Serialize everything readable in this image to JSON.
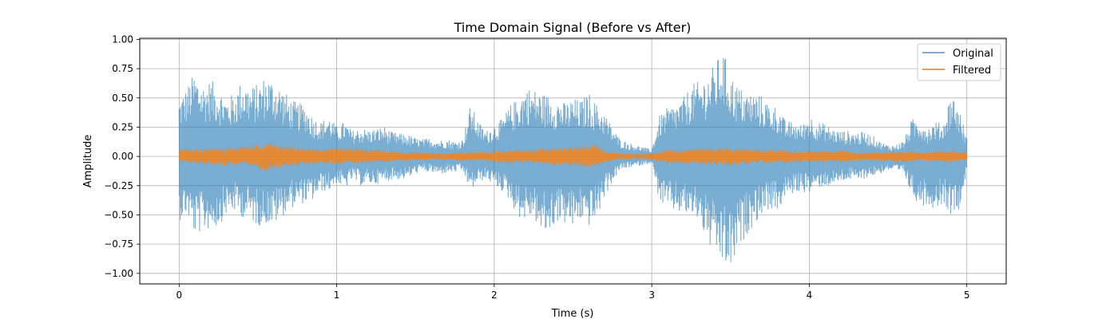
{
  "chart_data": {
    "type": "line",
    "title": "Time Domain Signal (Before vs After)",
    "xlabel": "Time (s)",
    "ylabel": "Amplitude",
    "xlim": [
      -0.25,
      5.25
    ],
    "ylim": [
      -1.09,
      1.01
    ],
    "xticks": [
      0,
      1,
      2,
      3,
      4,
      5
    ],
    "xtick_labels": [
      "0",
      "1",
      "2",
      "3",
      "4",
      "5"
    ],
    "yticks": [
      -1.0,
      -0.75,
      -0.5,
      -0.25,
      0.0,
      0.25,
      0.5,
      0.75,
      1.0
    ],
    "ytick_labels": [
      "−1.00",
      "−0.75",
      "−0.50",
      "−0.25",
      "0.00",
      "0.25",
      "0.50",
      "0.75",
      "1.00"
    ],
    "grid": true,
    "legend_position": "top-right",
    "series": [
      {
        "name": "Original",
        "color": "#1f77b4",
        "opacity": 0.6,
        "envelope": {
          "t": [
            0.0,
            0.05,
            0.1,
            0.15,
            0.2,
            0.25,
            0.3,
            0.35,
            0.4,
            0.45,
            0.5,
            0.55,
            0.6,
            0.65,
            0.7,
            0.75,
            0.8,
            0.85,
            0.9,
            0.95,
            1.0,
            1.05,
            1.1,
            1.15,
            1.2,
            1.25,
            1.3,
            1.35,
            1.4,
            1.45,
            1.5,
            1.55,
            1.6,
            1.65,
            1.7,
            1.75,
            1.8,
            1.85,
            1.9,
            1.95,
            2.0,
            2.05,
            2.1,
            2.15,
            2.2,
            2.25,
            2.3,
            2.35,
            2.4,
            2.45,
            2.5,
            2.55,
            2.6,
            2.65,
            2.7,
            2.75,
            2.8,
            2.85,
            2.9,
            2.95,
            3.0,
            3.05,
            3.1,
            3.15,
            3.2,
            3.25,
            3.3,
            3.35,
            3.4,
            3.45,
            3.5,
            3.55,
            3.6,
            3.65,
            3.7,
            3.75,
            3.8,
            3.85,
            3.9,
            3.95,
            4.0,
            4.05,
            4.1,
            4.15,
            4.2,
            4.25,
            4.3,
            4.35,
            4.4,
            4.45,
            4.5,
            4.55,
            4.6,
            4.65,
            4.7,
            4.75,
            4.8,
            4.85,
            4.9,
            4.95,
            5.0
          ],
          "upper": [
            0.5,
            0.6,
            0.73,
            0.62,
            0.66,
            0.6,
            0.5,
            0.55,
            0.66,
            0.6,
            0.62,
            0.7,
            0.66,
            0.6,
            0.5,
            0.46,
            0.45,
            0.34,
            0.3,
            0.35,
            0.26,
            0.3,
            0.22,
            0.25,
            0.23,
            0.24,
            0.26,
            0.21,
            0.2,
            0.19,
            0.16,
            0.15,
            0.16,
            0.14,
            0.15,
            0.13,
            0.15,
            0.45,
            0.3,
            0.22,
            0.28,
            0.32,
            0.44,
            0.5,
            0.6,
            0.58,
            0.55,
            0.52,
            0.5,
            0.46,
            0.5,
            0.48,
            0.55,
            0.45,
            0.38,
            0.25,
            0.15,
            0.12,
            0.1,
            0.08,
            0.06,
            0.35,
            0.42,
            0.45,
            0.5,
            0.62,
            0.64,
            0.7,
            0.79,
            0.92,
            0.71,
            0.6,
            0.55,
            0.55,
            0.52,
            0.45,
            0.43,
            0.3,
            0.3,
            0.27,
            0.36,
            0.3,
            0.28,
            0.24,
            0.22,
            0.22,
            0.21,
            0.21,
            0.18,
            0.13,
            0.1,
            0.1,
            0.14,
            0.32,
            0.33,
            0.25,
            0.3,
            0.28,
            0.56,
            0.42,
            0.16
          ],
          "lower": [
            -0.55,
            -0.5,
            -0.68,
            -0.65,
            -0.62,
            -0.6,
            -0.5,
            -0.48,
            -0.52,
            -0.55,
            -0.6,
            -0.58,
            -0.6,
            -0.52,
            -0.45,
            -0.42,
            -0.4,
            -0.38,
            -0.3,
            -0.3,
            -0.23,
            -0.28,
            -0.2,
            -0.25,
            -0.24,
            -0.24,
            -0.22,
            -0.2,
            -0.2,
            -0.19,
            -0.15,
            -0.13,
            -0.14,
            -0.16,
            -0.14,
            -0.14,
            -0.13,
            -0.3,
            -0.22,
            -0.2,
            -0.25,
            -0.3,
            -0.38,
            -0.52,
            -0.55,
            -0.52,
            -0.68,
            -0.66,
            -0.56,
            -0.58,
            -0.62,
            -0.55,
            -0.6,
            -0.55,
            -0.35,
            -0.22,
            -0.12,
            -0.1,
            -0.09,
            -0.07,
            -0.06,
            -0.4,
            -0.45,
            -0.48,
            -0.5,
            -0.52,
            -0.55,
            -0.75,
            -0.85,
            -0.93,
            -1.0,
            -0.82,
            -0.68,
            -0.58,
            -0.5,
            -0.45,
            -0.48,
            -0.35,
            -0.32,
            -0.3,
            -0.32,
            -0.27,
            -0.26,
            -0.25,
            -0.22,
            -0.2,
            -0.22,
            -0.19,
            -0.17,
            -0.15,
            -0.12,
            -0.14,
            -0.15,
            -0.33,
            -0.42,
            -0.42,
            -0.45,
            -0.4,
            -0.5,
            -0.45,
            -0.14
          ]
        }
      },
      {
        "name": "Filtered",
        "color": "#ff7f0e",
        "opacity": 0.8,
        "envelope": {
          "t": [
            0.0,
            0.1,
            0.2,
            0.3,
            0.4,
            0.5,
            0.55,
            0.6,
            0.7,
            0.8,
            0.9,
            1.0,
            1.1,
            1.2,
            1.3,
            1.4,
            1.5,
            1.6,
            1.7,
            1.8,
            1.9,
            2.0,
            2.1,
            2.2,
            2.3,
            2.4,
            2.5,
            2.6,
            2.65,
            2.7,
            2.8,
            2.9,
            3.0,
            3.1,
            3.2,
            3.3,
            3.4,
            3.5,
            3.6,
            3.7,
            3.8,
            3.9,
            4.0,
            4.1,
            4.2,
            4.3,
            4.4,
            4.5,
            4.6,
            4.7,
            4.8,
            4.9,
            5.0
          ],
          "upper": [
            0.06,
            0.07,
            0.07,
            0.07,
            0.08,
            0.1,
            0.11,
            0.12,
            0.09,
            0.07,
            0.06,
            0.08,
            0.07,
            0.06,
            0.05,
            0.04,
            0.04,
            0.03,
            0.03,
            0.04,
            0.04,
            0.05,
            0.05,
            0.06,
            0.07,
            0.07,
            0.08,
            0.1,
            0.11,
            0.05,
            0.03,
            0.02,
            0.03,
            0.06,
            0.06,
            0.07,
            0.07,
            0.07,
            0.07,
            0.06,
            0.06,
            0.05,
            0.05,
            0.05,
            0.05,
            0.04,
            0.04,
            0.04,
            0.05,
            0.04,
            0.05,
            0.05,
            0.04
          ],
          "lower": [
            -0.05,
            -0.06,
            -0.07,
            -0.08,
            -0.07,
            -0.1,
            -0.12,
            -0.1,
            -0.09,
            -0.07,
            -0.06,
            -0.07,
            -0.06,
            -0.05,
            -0.05,
            -0.04,
            -0.04,
            -0.03,
            -0.03,
            -0.04,
            -0.04,
            -0.05,
            -0.06,
            -0.06,
            -0.07,
            -0.08,
            -0.08,
            -0.1,
            -0.1,
            -0.05,
            -0.03,
            -0.02,
            -0.03,
            -0.06,
            -0.06,
            -0.07,
            -0.08,
            -0.08,
            -0.07,
            -0.06,
            -0.06,
            -0.05,
            -0.05,
            -0.05,
            -0.05,
            -0.04,
            -0.04,
            -0.04,
            -0.05,
            -0.04,
            -0.05,
            -0.05,
            -0.04
          ]
        }
      }
    ]
  }
}
